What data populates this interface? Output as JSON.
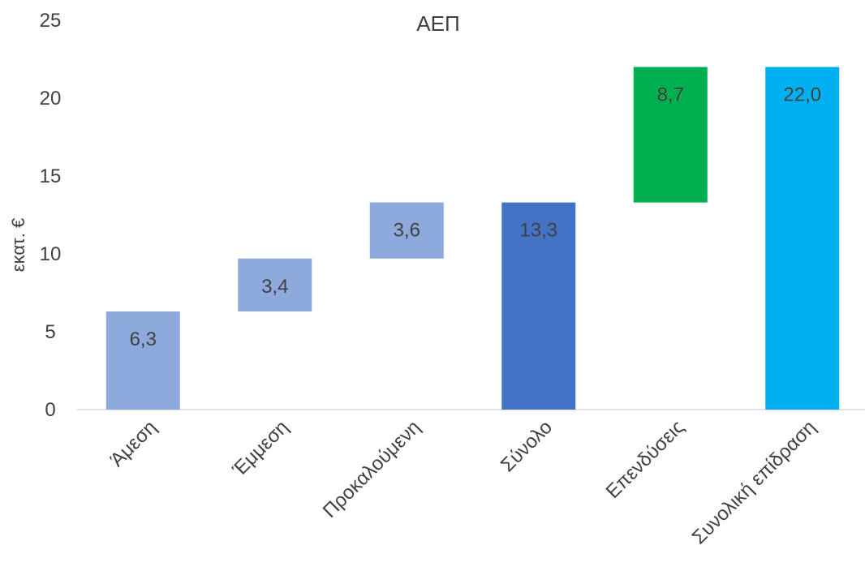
{
  "chart_data": {
    "type": "bar",
    "subtype": "waterfall",
    "title": "ΑΕΠ",
    "ylabel": "εκατ. €",
    "xlabel": "",
    "ylim": [
      0,
      25
    ],
    "yticks": [
      0,
      5,
      10,
      15,
      20,
      25
    ],
    "grid": false,
    "legend": "none",
    "categories": [
      "Άμεση",
      "Έμμεση",
      "Προκαλούμενη",
      "Σύνολο",
      "Επενδύσεις",
      "Συνολική επίδραση"
    ],
    "bars": [
      {
        "category": "Άμεση",
        "start": 0,
        "end": 6.3,
        "label": "6,3",
        "color": "#8EA9DB"
      },
      {
        "category": "Έμμεση",
        "start": 6.3,
        "end": 9.7,
        "label": "3,4",
        "color": "#8EA9DB"
      },
      {
        "category": "Προκαλούμενη",
        "start": 9.7,
        "end": 13.3,
        "label": "3,6",
        "color": "#8EA9DB"
      },
      {
        "category": "Σύνολο",
        "start": 0,
        "end": 13.3,
        "label": "13,3",
        "color": "#4472C4"
      },
      {
        "category": "Επενδύσεις",
        "start": 13.3,
        "end": 22.0,
        "label": "8,7",
        "color": "#00B050"
      },
      {
        "category": "Συνολική επίδραση",
        "start": 0,
        "end": 22.0,
        "label": "22,0",
        "color": "#00B0F0"
      }
    ]
  }
}
